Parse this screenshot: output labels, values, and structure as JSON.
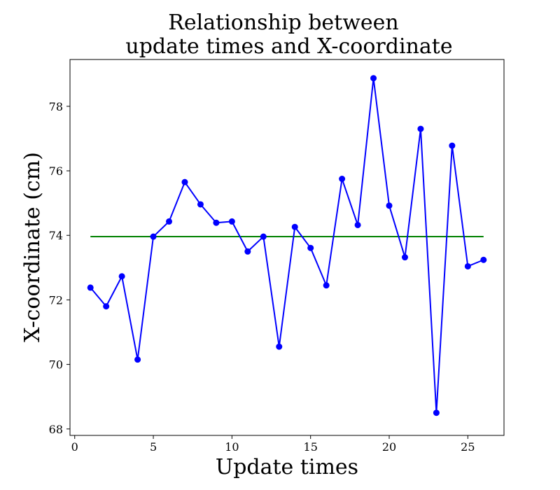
{
  "chart_data": {
    "type": "line",
    "title_lines": [
      "Relationship between",
      "update times and X-coordinate"
    ],
    "xlabel": "Update times",
    "ylabel": "X-coordinate (cm)",
    "xlim": [
      -0.3,
      27.3
    ],
    "ylim": [
      67.8,
      79.45
    ],
    "xticks": [
      0,
      5,
      10,
      15,
      20,
      25
    ],
    "yticks": [
      68,
      70,
      72,
      74,
      76,
      78
    ],
    "grid": false,
    "series": [
      {
        "color": "#0000ff",
        "marker": "circle",
        "x": [
          1,
          2,
          3,
          4,
          5,
          6,
          7,
          8,
          9,
          10,
          11,
          12,
          13,
          14,
          15,
          16,
          17,
          18,
          19,
          20,
          21,
          22,
          23,
          24,
          25,
          26
        ],
        "y": [
          72.38,
          71.8,
          72.73,
          70.15,
          73.96,
          74.43,
          75.65,
          74.96,
          74.39,
          74.43,
          73.5,
          73.96,
          70.55,
          74.26,
          73.61,
          72.45,
          75.75,
          74.32,
          78.87,
          74.92,
          73.32,
          77.3,
          68.5,
          76.78,
          73.04,
          73.24
        ]
      },
      {
        "color": "#008000",
        "marker": "none",
        "x": [
          1,
          26
        ],
        "y": [
          73.96,
          73.96
        ]
      }
    ]
  }
}
